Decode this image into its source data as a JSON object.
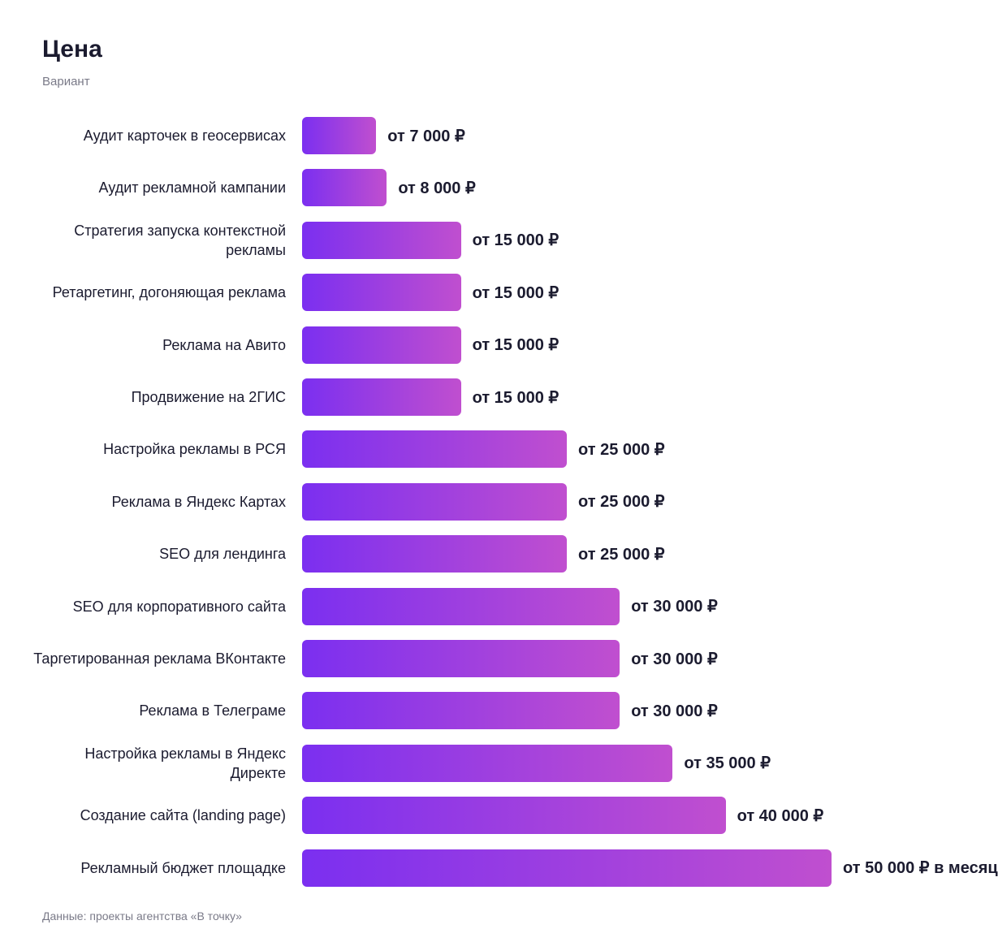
{
  "chart_data": {
    "type": "barh",
    "title": "Цена",
    "subtitle": "Вариант",
    "categories": [
      "Аудит карточек в геосервисах",
      "Аудит рекламной кампании",
      "Стратегия запуска контекстной рекламы",
      "Ретаргетинг, догоняющая реклама",
      "Реклама на Авито",
      "Продвижение на 2ГИС",
      "Настройка рекламы в РСЯ",
      "Реклама в Яндекс Картах",
      "SEO для лендинга",
      "SEO для корпоративного сайта",
      "Таргетированная реклама ВКонтакте",
      "Реклама в Телеграме",
      "Настройка рекламы в Яндекс Директе",
      "Создание сайта (landing page)",
      "Рекламный бюджет площадке"
    ],
    "values": [
      7000,
      8000,
      15000,
      15000,
      15000,
      15000,
      25000,
      25000,
      25000,
      30000,
      30000,
      30000,
      35000,
      40000,
      50000
    ],
    "value_labels": [
      "от 7 000 ₽",
      "от 8 000 ₽",
      "от 15 000 ₽",
      "от 15 000 ₽",
      "от 15 000 ₽",
      "от 15 000 ₽",
      "от 25 000 ₽",
      "от 25 000 ₽",
      "от 25 000 ₽",
      "от 30 000 ₽",
      "от 30 000 ₽",
      "от 30 000 ₽",
      "от 35 000 ₽",
      "от 40 000 ₽",
      "от 50 000 ₽ в месяц"
    ],
    "colors": [
      "#7b2ff0",
      "#c04fcf"
    ],
    "source": "Данные: проекты агентства «В точку»"
  }
}
